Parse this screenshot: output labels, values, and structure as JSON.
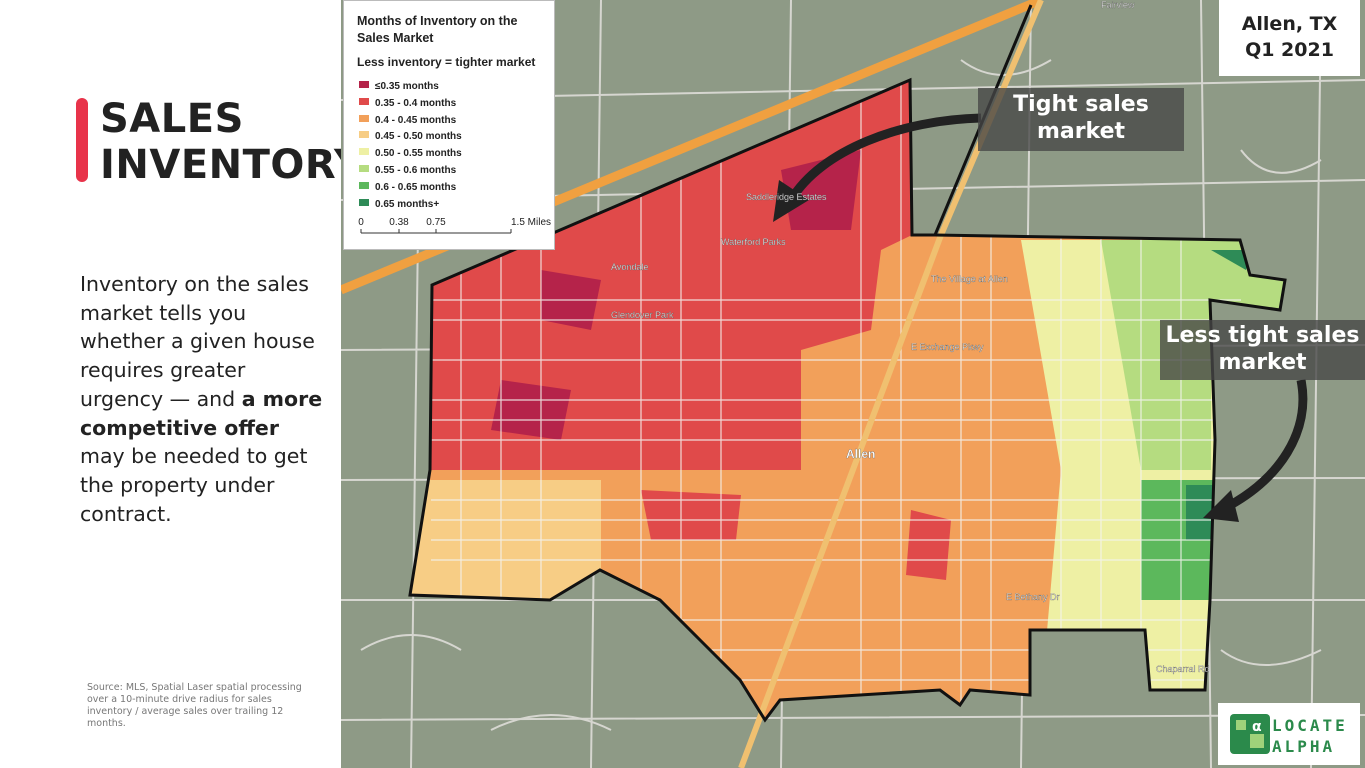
{
  "header": {
    "title": "SALES INVENTORY"
  },
  "body": [
    "Inventory on the sales market tells you whether a given house requires greater urgency — and ",
    "a more competitive offer",
    " may be needed to get the property under contract."
  ],
  "source": "Source: MLS, Spatial Laser spatial processing over a 10-minute drive radius for sales inventory / average sales over trailing 12 months.",
  "location": {
    "place": "Allen, TX",
    "period": "Q1 2021"
  },
  "legend": {
    "title": "Months of Inventory on the Sales Market",
    "subtitle": "Less inventory = tighter market",
    "items": [
      {
        "label": "≤0.35 months",
        "color": "#b5234a"
      },
      {
        "label": "0.35 - 0.4 months",
        "color": "#e04a4a"
      },
      {
        "label": "0.4 - 0.45 months",
        "color": "#f2a05a"
      },
      {
        "label": "0.45 - 0.50 months",
        "color": "#f7cd85"
      },
      {
        "label": "0.50 - 0.55 months",
        "color": "#eef0a4"
      },
      {
        "label": "0.55 - 0.6 months",
        "color": "#b5dc80"
      },
      {
        "label": "0.6 - 0.65 months",
        "color": "#5cb85c"
      },
      {
        "label": "0.65 months+",
        "color": "#2e8b57"
      }
    ],
    "scale": {
      "ticks": [
        0,
        0.38,
        0.75,
        {
          "value": 1.5,
          "label": "1.5 Miles"
        }
      ]
    }
  },
  "callouts": [
    "Tight sales market",
    "Less tight sales market"
  ],
  "map_labels": [
    "Fairview",
    "Avondale",
    "Glendover Park",
    "Waterford Parks",
    "Saddleridge Estates",
    "Allen",
    "The Village at Allen",
    "E Exchange Pkwy",
    "E Bethany Dr",
    "Chaparral Rd"
  ],
  "logo": [
    "LOCATE",
    "ALPHA"
  ]
}
